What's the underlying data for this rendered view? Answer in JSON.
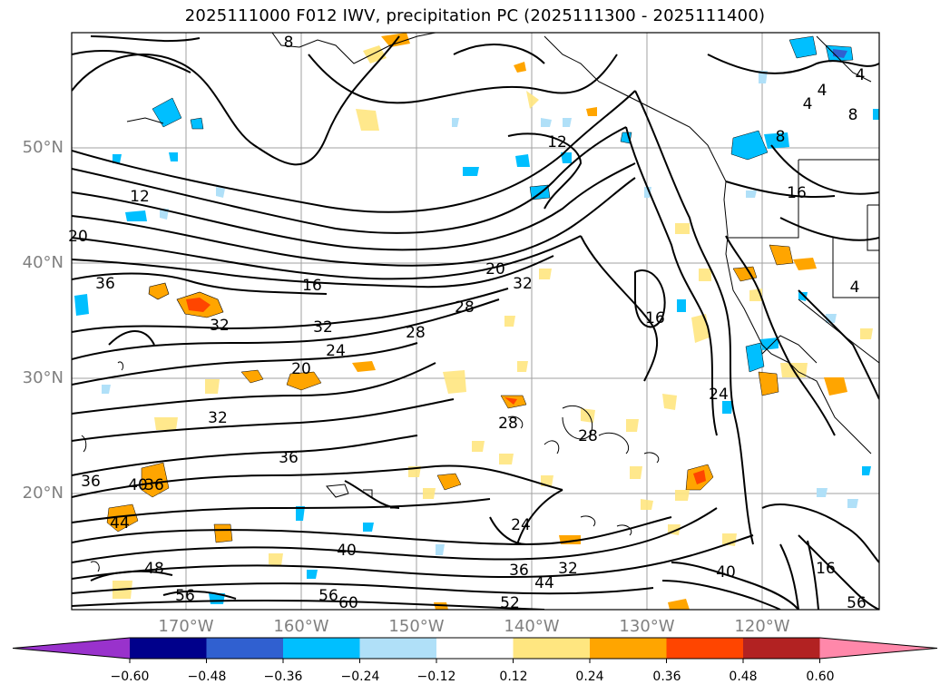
{
  "title": "2025111000 F012 IWV, precipitation PC (2025111300 - 2025111400)",
  "lat_labels": [
    "50°N",
    "40°N",
    "30°N",
    "20°N"
  ],
  "lon_labels": [
    "170°W",
    "160°W",
    "150°W",
    "140°W",
    "130°W",
    "120°W"
  ],
  "colorbar": {
    "colors": [
      "#9932cc",
      "#00008b",
      "#3060d0",
      "#00bfff",
      "#b0e0f8",
      "#ffffff",
      "#ffe680",
      "#ffa500",
      "#ff4500",
      "#b22222",
      "#ff88aa"
    ],
    "ticks": [
      "−0.60",
      "−0.48",
      "−0.36",
      "−0.24",
      "−0.12",
      "0.12",
      "0.24",
      "0.36",
      "0.48",
      "0.60"
    ]
  },
  "contour_labels": [
    {
      "text": "8"
    },
    {
      "text": "12"
    },
    {
      "text": "12"
    },
    {
      "text": "16"
    },
    {
      "text": "16"
    },
    {
      "text": "16"
    },
    {
      "text": "20"
    },
    {
      "text": "20"
    },
    {
      "text": "20"
    },
    {
      "text": "24"
    },
    {
      "text": "24"
    },
    {
      "text": "24"
    },
    {
      "text": "28"
    },
    {
      "text": "28"
    },
    {
      "text": "28"
    },
    {
      "text": "28"
    },
    {
      "text": "32"
    },
    {
      "text": "32"
    },
    {
      "text": "32"
    },
    {
      "text": "32"
    },
    {
      "text": "32"
    },
    {
      "text": "36"
    },
    {
      "text": "36"
    },
    {
      "text": "36"
    },
    {
      "text": "36"
    },
    {
      "text": "40"
    },
    {
      "text": "40"
    },
    {
      "text": "40"
    },
    {
      "text": "44"
    },
    {
      "text": "44"
    },
    {
      "text": "48"
    },
    {
      "text": "52"
    },
    {
      "text": "56"
    },
    {
      "text": "56"
    },
    {
      "text": "56"
    },
    {
      "text": "60"
    },
    {
      "text": "4"
    },
    {
      "text": "4"
    },
    {
      "text": "4"
    },
    {
      "text": "4"
    },
    {
      "text": "8"
    },
    {
      "text": "8"
    },
    {
      "text": "16"
    },
    {
      "text": "36"
    }
  ]
}
